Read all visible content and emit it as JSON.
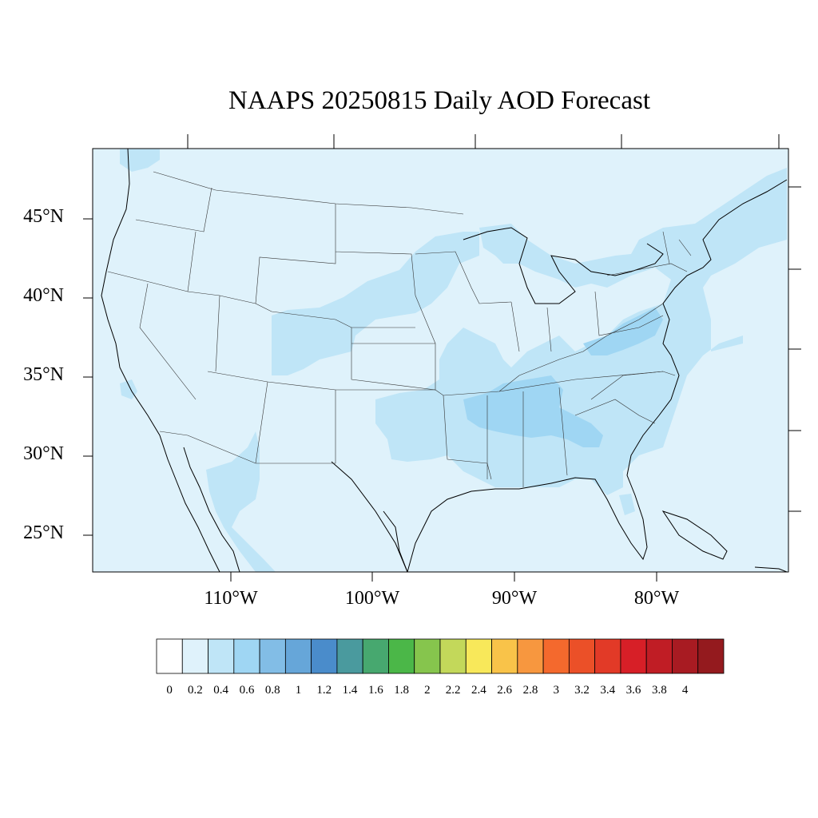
{
  "title": "NAAPS 20250815 Daily AOD Forecast",
  "chart_data": {
    "type": "map",
    "title": "NAAPS 20250815 Daily AOD Forecast",
    "projection": "cylindrical-equidistant",
    "lon_range": [
      -119,
      -70
    ],
    "lat_range": [
      22.5,
      49.3
    ],
    "lat_ticks": [
      {
        "value": 45,
        "label": "45°N"
      },
      {
        "value": 40,
        "label": "40°N"
      },
      {
        "value": 35,
        "label": "35°N"
      },
      {
        "value": 30,
        "label": "30°N"
      },
      {
        "value": 25,
        "label": "25°N"
      }
    ],
    "lon_ticks": [
      {
        "value": -110,
        "label": "110°W"
      },
      {
        "value": -100,
        "label": "100°W"
      },
      {
        "value": -90,
        "label": "90°W"
      },
      {
        "value": -80,
        "label": "80°W"
      }
    ],
    "colorbar": {
      "labels": [
        "0",
        "0.2",
        "0.4",
        "0.6",
        "0.8",
        "1",
        "1.2",
        "1.4",
        "1.6",
        "1.8",
        "2",
        "2.2",
        "2.4",
        "2.6",
        "2.8",
        "3",
        "3.2",
        "3.4",
        "3.6",
        "3.8",
        "4"
      ],
      "colors": [
        "#ffffff",
        "#dff2fb",
        "#bfe5f7",
        "#9fd6f3",
        "#82bde6",
        "#66a6d9",
        "#4a8ccb",
        "#4a9a9e",
        "#47a86f",
        "#4bb748",
        "#86c54d",
        "#c3d85a",
        "#f8e85a",
        "#f9c349",
        "#f7973f",
        "#f4692d",
        "#eb5028",
        "#e23a27",
        "#d71f27",
        "#c01d25",
        "#a81b22",
        "#941a1e"
      ]
    },
    "aod_regions": [
      {
        "level": "0.2-0.4",
        "area": "central plains and Colorado"
      },
      {
        "level": "0.2-0.4",
        "area": "upper midwest and Great Lakes"
      },
      {
        "level": "0.2-0.4",
        "area": "ohio valley and mid-atlantic"
      },
      {
        "level": "0.2-0.4",
        "area": "southeast and gulf states"
      },
      {
        "level": "0.2-0.4",
        "area": "northeast and new england"
      },
      {
        "level": "0.2-0.4",
        "area": "sierra madre mexico"
      },
      {
        "level": "0.4-0.6",
        "area": "tennessee and alabama"
      },
      {
        "level": "0.4-0.6",
        "area": "pennsylvania to virginia"
      }
    ],
    "background_level": "0-0.2"
  }
}
